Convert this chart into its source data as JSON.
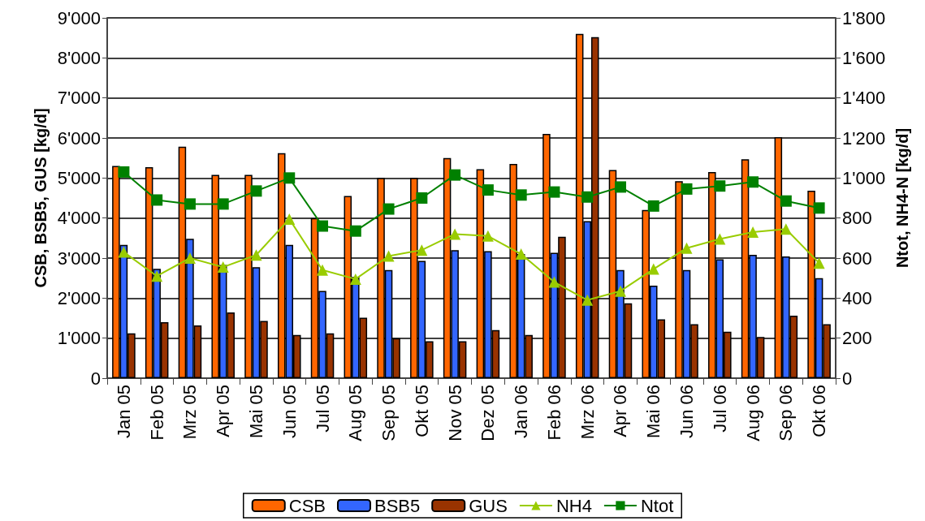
{
  "chart_data": {
    "type": "bar",
    "ylabel": "CSB, BSB5, GUS [kg/d]",
    "y2label": "Ntot, NH4-N [kg/d]",
    "categories": [
      "Jan 05",
      "Feb 05",
      "Mrz 05",
      "Apr 05",
      "Mai 05",
      "Jun 05",
      "Jul 05",
      "Aug 05",
      "Sep 05",
      "Okt 05",
      "Nov 05",
      "Dez 05",
      "Jan 06",
      "Feb 06",
      "Mrz 06",
      "Apr 06",
      "Mai 06",
      "Jun 06",
      "Jul 06",
      "Aug 06",
      "Sep 06",
      "Okt 06"
    ],
    "series": [
      {
        "name": "CSB",
        "color": "#ff6600",
        "values": [
          5300,
          5270,
          5780,
          5080,
          5080,
          5620,
          4000,
          4550,
          5000,
          5000,
          5500,
          5220,
          5350,
          6100,
          8600,
          5200,
          4200,
          4920,
          5150,
          5470,
          6020,
          4680
        ]
      },
      {
        "name": "BSB5",
        "color": "#3366ff",
        "values": [
          3330,
          2730,
          3480,
          2830,
          2770,
          3330,
          2180,
          2530,
          2700,
          2930,
          3200,
          3170,
          3100,
          3130,
          3920,
          2700,
          2310,
          2700,
          2970,
          3080,
          3040,
          2500
        ]
      },
      {
        "name": "GUS",
        "color": "#993300",
        "values": [
          1120,
          1400,
          1320,
          1640,
          1430,
          1080,
          1120,
          1510,
          1000,
          920,
          920,
          1200,
          1080,
          3530,
          8520,
          1870,
          1470,
          1350,
          1160,
          1030,
          1560,
          1350
        ]
      },
      {
        "name": "NH4",
        "type": "line",
        "axis": "y2",
        "marker": "triangle",
        "color": "#99cc00",
        "values": [
          630,
          510,
          600,
          555,
          615,
          795,
          540,
          495,
          610,
          640,
          720,
          710,
          620,
          480,
          390,
          435,
          545,
          650,
          695,
          730,
          745,
          575
        ]
      },
      {
        "name": "Ntot",
        "type": "line",
        "axis": "y2",
        "marker": "square",
        "color": "#008000",
        "values": [
          1030,
          890,
          870,
          870,
          935,
          1000,
          760,
          735,
          845,
          900,
          1015,
          940,
          915,
          930,
          905,
          955,
          860,
          945,
          960,
          980,
          885,
          850
        ]
      }
    ],
    "ylim": [
      0,
      9000
    ],
    "yticks": [
      {
        "value": 0,
        "label": "0"
      },
      {
        "value": 1000,
        "label": "1'000"
      },
      {
        "value": 2000,
        "label": "2'000"
      },
      {
        "value": 3000,
        "label": "3'000"
      },
      {
        "value": 4000,
        "label": "4'000"
      },
      {
        "value": 5000,
        "label": "5'000"
      },
      {
        "value": 6000,
        "label": "6'000"
      },
      {
        "value": 7000,
        "label": "7'000"
      },
      {
        "value": 8000,
        "label": "8'000"
      },
      {
        "value": 9000,
        "label": "9'000"
      }
    ],
    "y2lim": [
      0,
      1800
    ],
    "y2ticks": [
      {
        "value": 0,
        "label": "0"
      },
      {
        "value": 200,
        "label": "200"
      },
      {
        "value": 400,
        "label": "400"
      },
      {
        "value": 600,
        "label": "600"
      },
      {
        "value": 800,
        "label": "800"
      },
      {
        "value": 1000,
        "label": "1'000"
      },
      {
        "value": 1200,
        "label": "1'200"
      },
      {
        "value": 1400,
        "label": "1'400"
      },
      {
        "value": 1600,
        "label": "1'600"
      },
      {
        "value": 1800,
        "label": "1'800"
      }
    ],
    "grid": "y",
    "legend": "bottom"
  }
}
